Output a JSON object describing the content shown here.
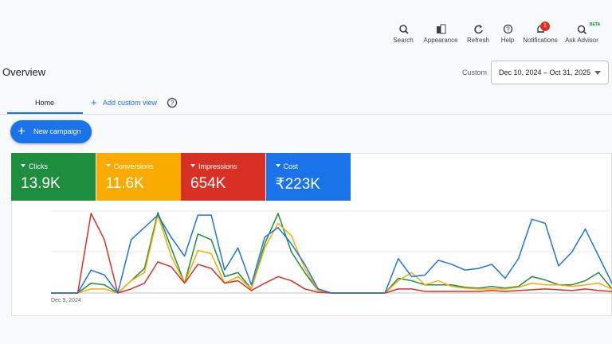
{
  "toolbar": [
    "Search",
    "Appearance",
    "Refresh",
    "Help",
    "Notifications",
    "Ask Advisor"
  ],
  "notification_badge": "1",
  "beta_badge": "BETA",
  "page_title": "Overview",
  "date_mode": "Custom",
  "date_range": "Dec 10, 2024 – Oct 31, 2025",
  "tabs": {
    "home": "Home",
    "add_view": "Add custom view"
  },
  "new_campaign": "New campaign",
  "chart_data": {
    "type": "line",
    "categories": [
      "Dec 9, 2024",
      null,
      null,
      null,
      null,
      null,
      null,
      null,
      null,
      null,
      null,
      null,
      null,
      null,
      null,
      null,
      null,
      null,
      null,
      null,
      null,
      null,
      null,
      null,
      null,
      null,
      null,
      null,
      null,
      null,
      null,
      null,
      null,
      null,
      null,
      null,
      null,
      null,
      null,
      null,
      null,
      null,
      null
    ],
    "ylim": [
      0,
      100
    ],
    "series": [
      {
        "name": "Clicks",
        "total": "13.9K",
        "color": "#1e8e3e",
        "values": [
          0,
          0,
          0,
          12,
          10,
          0,
          15,
          30,
          98,
          55,
          12,
          72,
          65,
          20,
          25,
          5,
          60,
          97,
          50,
          25,
          3,
          0,
          0,
          0,
          0,
          0,
          18,
          15,
          10,
          10,
          10,
          7,
          6,
          8,
          6,
          8,
          20,
          16,
          10,
          10,
          15,
          25,
          5
        ]
      },
      {
        "name": "Conversions",
        "total": "11.6K",
        "color": "#f9ab00",
        "values": [
          0,
          0,
          0,
          5,
          5,
          0,
          15,
          25,
          95,
          45,
          12,
          52,
          48,
          12,
          20,
          5,
          55,
          85,
          70,
          30,
          3,
          0,
          0,
          0,
          0,
          0,
          15,
          25,
          10,
          15,
          8,
          6,
          5,
          5,
          5,
          7,
          12,
          10,
          10,
          8,
          10,
          12,
          5
        ]
      },
      {
        "name": "Impressions",
        "total": "654K",
        "color": "#d93025",
        "values": [
          0,
          0,
          0,
          97,
          65,
          0,
          5,
          12,
          38,
          32,
          12,
          35,
          30,
          12,
          15,
          3,
          12,
          20,
          15,
          5,
          1,
          0,
          0,
          0,
          0,
          0,
          5,
          5,
          2,
          2,
          2,
          2,
          2,
          3,
          2,
          3,
          4,
          5,
          4,
          3,
          5,
          3,
          2
        ]
      },
      {
        "name": "Cost",
        "total": "₹223K",
        "color": "#1a73e8",
        "values": [
          0,
          0,
          0,
          28,
          22,
          0,
          65,
          80,
          95,
          68,
          45,
          95,
          95,
          28,
          55,
          10,
          68,
          80,
          60,
          35,
          5,
          0,
          0,
          0,
          0,
          0,
          42,
          20,
          22,
          40,
          35,
          28,
          30,
          35,
          18,
          42,
          90,
          85,
          33,
          50,
          78,
          45,
          12
        ]
      }
    ]
  }
}
